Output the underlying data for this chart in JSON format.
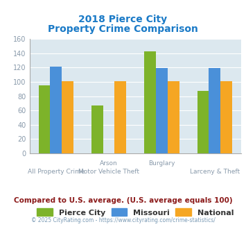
{
  "title_line1": "2018 Pierce City",
  "title_line2": "Property Crime Comparison",
  "pierce_city": [
    95,
    67,
    143,
    87
  ],
  "missouri": [
    121,
    0,
    119,
    119
  ],
  "national": [
    101,
    101,
    101,
    101
  ],
  "pierce_city_color": "#7db32a",
  "missouri_color": "#4a90d9",
  "national_color": "#f5a623",
  "ylim": [
    0,
    160
  ],
  "yticks": [
    0,
    20,
    40,
    60,
    80,
    100,
    120,
    140,
    160
  ],
  "bg_color": "#dce8ef",
  "legend_labels": [
    "Pierce City",
    "Missouri",
    "National"
  ],
  "x_labels_top": [
    "",
    "Arson",
    "Burglary",
    ""
  ],
  "x_labels_bottom": [
    "All Property Crime",
    "Motor Vehicle Theft",
    "",
    "Larceny & Theft"
  ],
  "footnote1": "Compared to U.S. average. (U.S. average equals 100)",
  "footnote2": "© 2025 CityRating.com - https://www.cityrating.com/crime-statistics/",
  "title_color": "#1a7ac7",
  "footnote1_color": "#8b1a1a",
  "footnote2_color": "#7a9ab5",
  "tick_color": "#8899aa",
  "label_color": "#8899aa"
}
